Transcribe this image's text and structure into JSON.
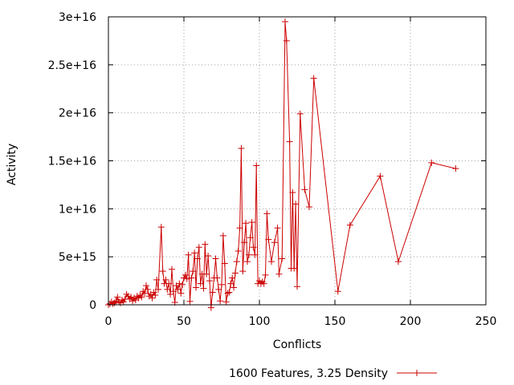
{
  "chart_data": {
    "type": "line",
    "title": "",
    "xlabel": "Conflicts",
    "ylabel": "Activity",
    "xlim": [
      0,
      250
    ],
    "ylim": [
      0,
      3e+16
    ],
    "x_ticks": [
      0,
      50,
      100,
      150,
      200,
      250
    ],
    "x_tick_labels": [
      "0",
      "50",
      "100",
      "150",
      "200",
      "250"
    ],
    "y_ticks": [
      0,
      5000000000000000.0,
      1e+16,
      1.5e+16,
      2e+16,
      2.5e+16,
      3e+16
    ],
    "y_tick_labels": [
      "0",
      "5e+15",
      "1e+16",
      "1.5e+16",
      "2e+16",
      "2.5e+16",
      "3e+16"
    ],
    "grid": true,
    "legend_position": "bottom-center",
    "series_color": "#cc0000",
    "series": [
      {
        "name": "1600 Features, 3.25 Density",
        "marker": "plus",
        "points": [
          [
            0,
            0
          ],
          [
            1,
            100000000000000.0
          ],
          [
            2,
            300000000000000.0
          ],
          [
            3,
            100000000000000.0
          ],
          [
            4,
            200000000000000.0
          ],
          [
            5,
            400000000000000.0
          ],
          [
            6,
            800000000000000.0
          ],
          [
            7,
            300000000000000.0
          ],
          [
            8,
            200000000000000.0
          ],
          [
            9,
            500000000000000.0
          ],
          [
            10,
            300000000000000.0
          ],
          [
            11,
            600000000000000.0
          ],
          [
            12,
            1100000000000000.0
          ],
          [
            13,
            900000000000000.0
          ],
          [
            14,
            600000000000000.0
          ],
          [
            15,
            800000000000000.0
          ],
          [
            16,
            400000000000000.0
          ],
          [
            17,
            700000000000000.0
          ],
          [
            18,
            500000000000000.0
          ],
          [
            19,
            900000000000000.0
          ],
          [
            20,
            700000000000000.0
          ],
          [
            21,
            1000000000000000.0
          ],
          [
            22,
            800000000000000.0
          ],
          [
            23,
            1400000000000000.0
          ],
          [
            24,
            1200000000000000.0
          ],
          [
            25,
            2000000000000000.0
          ],
          [
            26,
            1600000000000000.0
          ],
          [
            27,
            900000000000000.0
          ],
          [
            28,
            1100000000000000.0
          ],
          [
            29,
            700000000000000.0
          ],
          [
            30,
            1300000000000000.0
          ],
          [
            31,
            1000000000000000.0
          ],
          [
            32,
            2600000000000000.0
          ],
          [
            33,
            1600000000000000.0
          ],
          [
            35,
            8100000000000000.0
          ],
          [
            36,
            3500000000000000.0
          ],
          [
            37,
            2200000000000000.0
          ],
          [
            38,
            2600000000000000.0
          ],
          [
            39,
            1600000000000000.0
          ],
          [
            40,
            2200000000000000.0
          ],
          [
            41,
            1100000000000000.0
          ],
          [
            42,
            3700000000000000.0
          ],
          [
            43,
            1400000000000000.0
          ],
          [
            44,
            250000000000000.0
          ],
          [
            45,
            2000000000000000.0
          ],
          [
            46,
            1600000000000000.0
          ],
          [
            47,
            2200000000000000.0
          ],
          [
            48,
            1200000000000000.0
          ],
          [
            49,
            2100000000000000.0
          ],
          [
            50,
            2800000000000000.0
          ],
          [
            51,
            3100000000000000.0
          ],
          [
            52,
            2700000000000000.0
          ],
          [
            53,
            5200000000000000.0
          ],
          [
            54,
            350000000000000.0
          ],
          [
            55,
            2800000000000000.0
          ],
          [
            56,
            3500000000000000.0
          ],
          [
            57,
            5400000000000000.0
          ],
          [
            58,
            1800000000000000.0
          ],
          [
            59,
            4800000000000000.0
          ],
          [
            60,
            6000000000000000.0
          ],
          [
            61,
            2200000000000000.0
          ],
          [
            62,
            3200000000000000.0
          ],
          [
            63,
            1700000000000000.0
          ],
          [
            64,
            6300000000000000.0
          ],
          [
            65,
            3200000000000000.0
          ],
          [
            66,
            5100000000000000.0
          ],
          [
            67,
            2500000000000000.0
          ],
          [
            68,
            -300000000000000.0
          ],
          [
            69,
            1300000000000000.0
          ],
          [
            70,
            2800000000000000.0
          ],
          [
            71,
            4800000000000000.0
          ],
          [
            72,
            2800000000000000.0
          ],
          [
            73,
            1600000000000000.0
          ],
          [
            74,
            400000000000000.0
          ],
          [
            75,
            2100000000000000.0
          ],
          [
            76,
            7200000000000000.0
          ],
          [
            77,
            4300000000000000.0
          ],
          [
            78,
            300000000000000.0
          ],
          [
            79,
            1200000000000000.0
          ],
          [
            80,
            1300000000000000.0
          ],
          [
            81,
            2200000000000000.0
          ],
          [
            82,
            2800000000000000.0
          ],
          [
            83,
            1800000000000000.0
          ],
          [
            84,
            3300000000000000.0
          ],
          [
            85,
            4500000000000000.0
          ],
          [
            86,
            5600000000000000.0
          ],
          [
            87,
            8000000000000000.0
          ],
          [
            88,
            1.63e+16
          ],
          [
            89,
            3500000000000000.0
          ],
          [
            90,
            6500000000000000.0
          ],
          [
            91,
            8500000000000000.0
          ],
          [
            92,
            4500000000000000.0
          ],
          [
            93,
            5200000000000000.0
          ],
          [
            94,
            7000000000000000.0
          ],
          [
            95,
            8600000000000000.0
          ],
          [
            96,
            6000000000000000.0
          ],
          [
            97,
            5200000000000000.0
          ],
          [
            98,
            1.45e+16
          ],
          [
            99,
            2200000000000000.0
          ],
          [
            100,
            2500000000000000.0
          ],
          [
            101,
            2200000000000000.0
          ],
          [
            102,
            2400000000000000.0
          ],
          [
            103,
            2200000000000000.0
          ],
          [
            104,
            3100000000000000.0
          ],
          [
            105,
            9500000000000000.0
          ],
          [
            106,
            6800000000000000.0
          ],
          [
            108,
            4500000000000000.0
          ],
          [
            110,
            6500000000000000.0
          ],
          [
            112,
            8000000000000000.0
          ],
          [
            113,
            3200000000000000.0
          ],
          [
            115,
            4800000000000000.0
          ],
          [
            117,
            2.95e+16
          ],
          [
            118,
            2.75e+16
          ],
          [
            120,
            1.7e+16
          ],
          [
            121,
            3800000000000000.0
          ],
          [
            122,
            1.17e+16
          ],
          [
            123,
            3800000000000000.0
          ],
          [
            124,
            1.05e+16
          ],
          [
            125,
            1900000000000000.0
          ],
          [
            127,
            1.99e+16
          ],
          [
            130,
            1.2e+16
          ],
          [
            133,
            1.02e+16
          ],
          [
            136,
            2.36e+16
          ],
          [
            152,
            1400000000000000.0
          ],
          [
            160,
            8300000000000000.0
          ],
          [
            180,
            1.34e+16
          ],
          [
            192,
            4500000000000000.0
          ],
          [
            214,
            1.48e+16
          ],
          [
            230,
            1.42e+16
          ]
        ]
      }
    ]
  }
}
